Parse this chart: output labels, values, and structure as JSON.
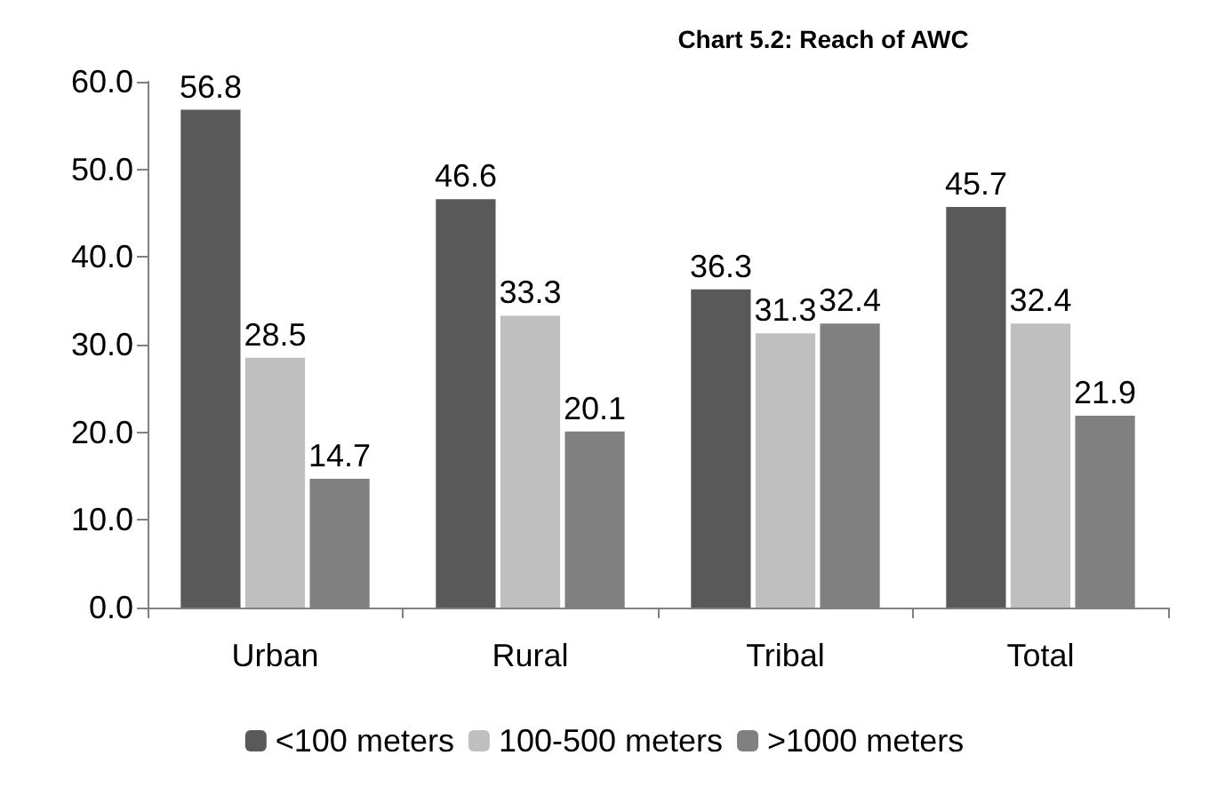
{
  "chart_data": {
    "type": "bar",
    "title": "Chart 5.2: Reach of AWC",
    "categories": [
      "Urban",
      "Rural",
      "Tribal",
      "Total"
    ],
    "series": [
      {
        "name": "<100 meters",
        "color": "#595959",
        "values": [
          56.8,
          46.6,
          36.3,
          45.7
        ]
      },
      {
        "name": "100-500 meters",
        "color": "#bfbfbf",
        "values": [
          28.5,
          33.3,
          31.3,
          32.4
        ]
      },
      {
        "name": ">1000 meters",
        "color": "#808080",
        "values": [
          14.7,
          20.1,
          32.4,
          21.9
        ]
      }
    ],
    "ylim": [
      0,
      60
    ],
    "yticks": [
      {
        "value": 0,
        "label": "0.0"
      },
      {
        "value": 10,
        "label": "10.0"
      },
      {
        "value": 20,
        "label": "20.0"
      },
      {
        "value": 30,
        "label": "30.0"
      },
      {
        "value": 40,
        "label": "40.0"
      },
      {
        "value": 50,
        "label": "50.0"
      },
      {
        "value": 60,
        "label": "60.0"
      }
    ],
    "data_labels": true,
    "grid": false,
    "legend": "bottom"
  }
}
